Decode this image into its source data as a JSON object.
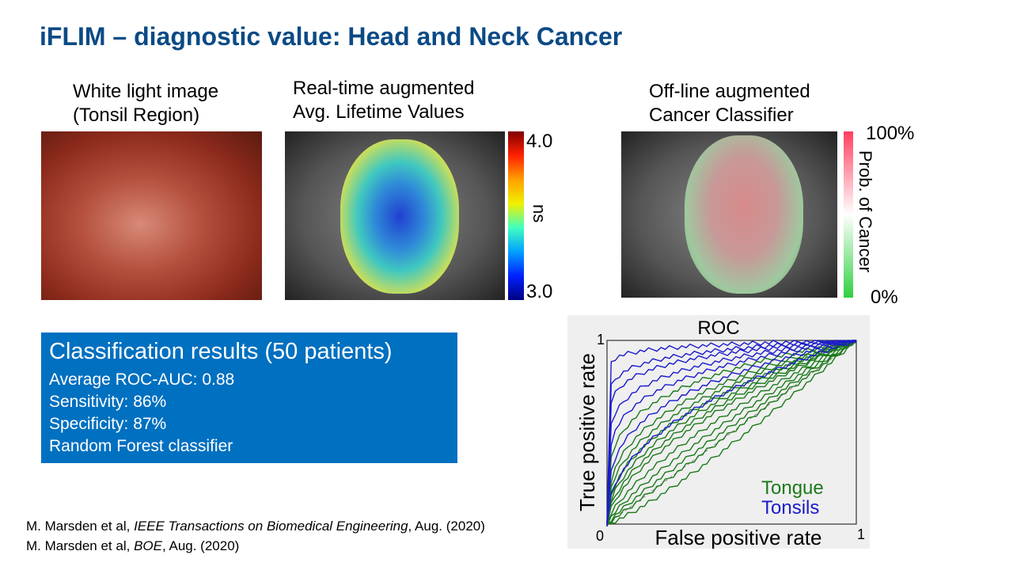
{
  "title": "iFLIM – diagnostic value: Head and Neck Cancer",
  "panels": [
    {
      "caption_line1": "White light image",
      "caption_line2": "(Tonsil Region)"
    },
    {
      "caption_line1": "Real-time augmented",
      "caption_line2": "Avg. Lifetime Values",
      "colorbar": {
        "max": "4.0",
        "min": "3.0",
        "unit": "ns"
      }
    },
    {
      "caption_line1": "Off-line augmented",
      "caption_line2": "Cancer Classifier",
      "colorbar": {
        "max": "100%",
        "min": "0%",
        "label": "Prob. of Cancer",
        "colors": [
          "#ff4060",
          "#ffffff",
          "#30d040"
        ]
      }
    }
  ],
  "results": {
    "heading": "Classification results (50 patients)",
    "lines": [
      "Average ROC-AUC: 0.88",
      "Sensitivity: 86%",
      "Specificity: 87%",
      "Random Forest classifier"
    ],
    "bg": "#0070c0"
  },
  "roc": {
    "title": "ROC",
    "xlabel": "False positive rate",
    "ylabel": "True positive rate",
    "x0": "0",
    "x1": "1",
    "y1": "1",
    "legend": [
      {
        "name": "Tongue",
        "color": "#1a7a1a"
      },
      {
        "name": "Tonsils",
        "color": "#1a1acc"
      }
    ]
  },
  "citations": [
    {
      "authors": "M. Marsden et al, ",
      "journal": "IEEE Transactions on Biomedical Engineering",
      "date": ", Aug. (2020)"
    },
    {
      "authors": "M. Marsden et al, ",
      "journal": "BOE",
      "date": ", Aug. (2020)"
    }
  ]
}
